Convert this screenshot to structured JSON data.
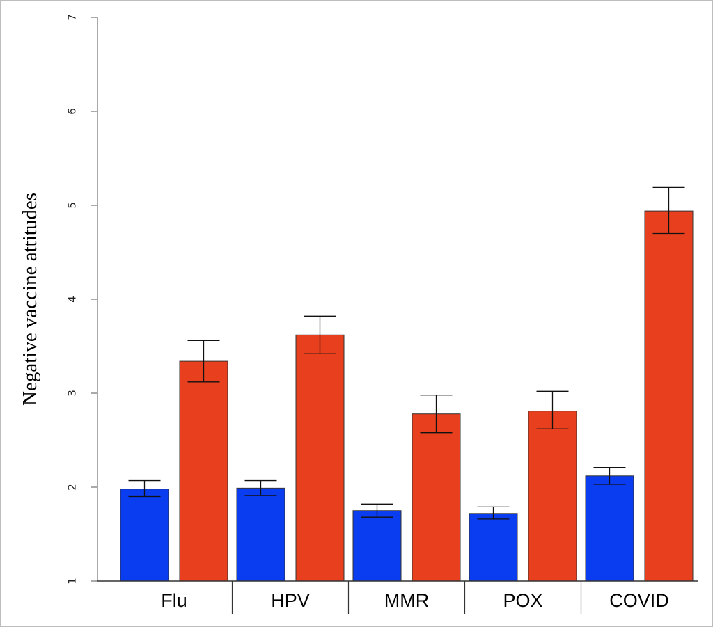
{
  "chart_data": {
    "type": "bar",
    "title": "",
    "xlabel": "",
    "ylabel": "Negative vaccine attitudes",
    "ylim": [
      1,
      7
    ],
    "yticks": [
      "1",
      "2",
      "3",
      "4",
      "5",
      "6",
      "7"
    ],
    "categories": [
      "Flu",
      "HPV",
      "MMR",
      "POX",
      "COVID"
    ],
    "grid": false,
    "legend": "none",
    "series": [
      {
        "color": "#0a3cf0",
        "values": [
          1.98,
          1.99,
          1.75,
          1.72,
          2.12
        ],
        "error_low": [
          1.9,
          1.91,
          1.68,
          1.66,
          2.03
        ],
        "error_high": [
          2.07,
          2.07,
          1.82,
          1.79,
          2.21
        ]
      },
      {
        "color": "#e8401f",
        "values": [
          3.34,
          3.62,
          2.78,
          2.81,
          4.94
        ],
        "error_low": [
          3.12,
          3.42,
          2.58,
          2.62,
          4.7
        ],
        "error_high": [
          3.56,
          3.82,
          2.98,
          3.02,
          5.19
        ]
      }
    ]
  }
}
